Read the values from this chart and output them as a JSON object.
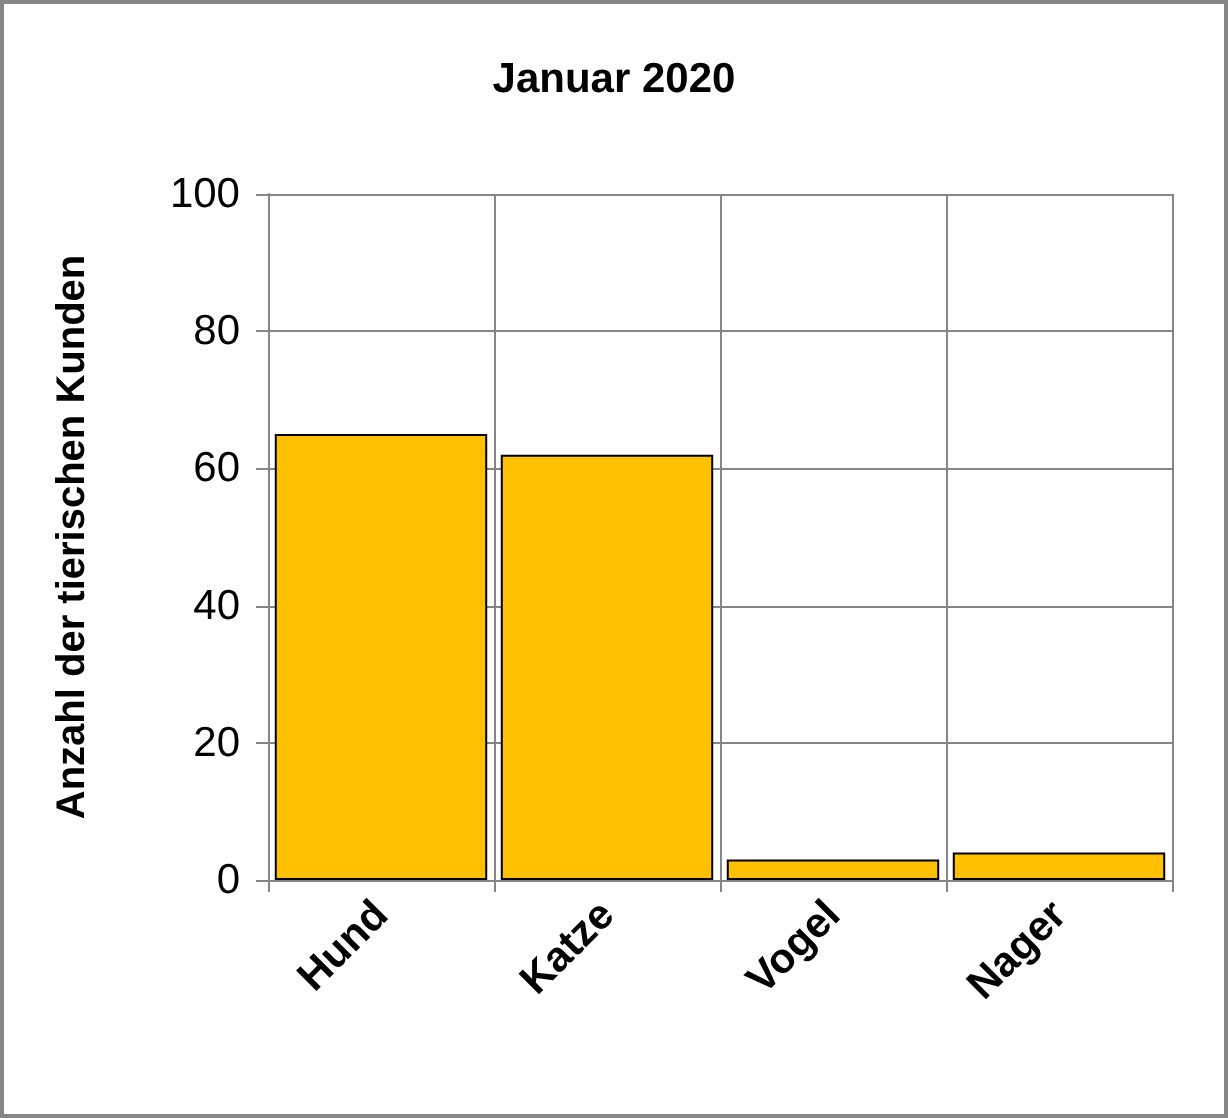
{
  "chart_data": {
    "type": "bar",
    "title": "Januar 2020",
    "ylabel": "Anzahl der tierischen Kunden",
    "categories": [
      "Hund",
      "Katze",
      "Vogel",
      "Nager"
    ],
    "values": [
      65,
      62,
      3,
      4
    ],
    "color": "#ffc000",
    "ylim": [
      0,
      100
    ],
    "yticks": [
      0,
      20,
      40,
      60,
      80,
      100
    ],
    "grid": true
  }
}
